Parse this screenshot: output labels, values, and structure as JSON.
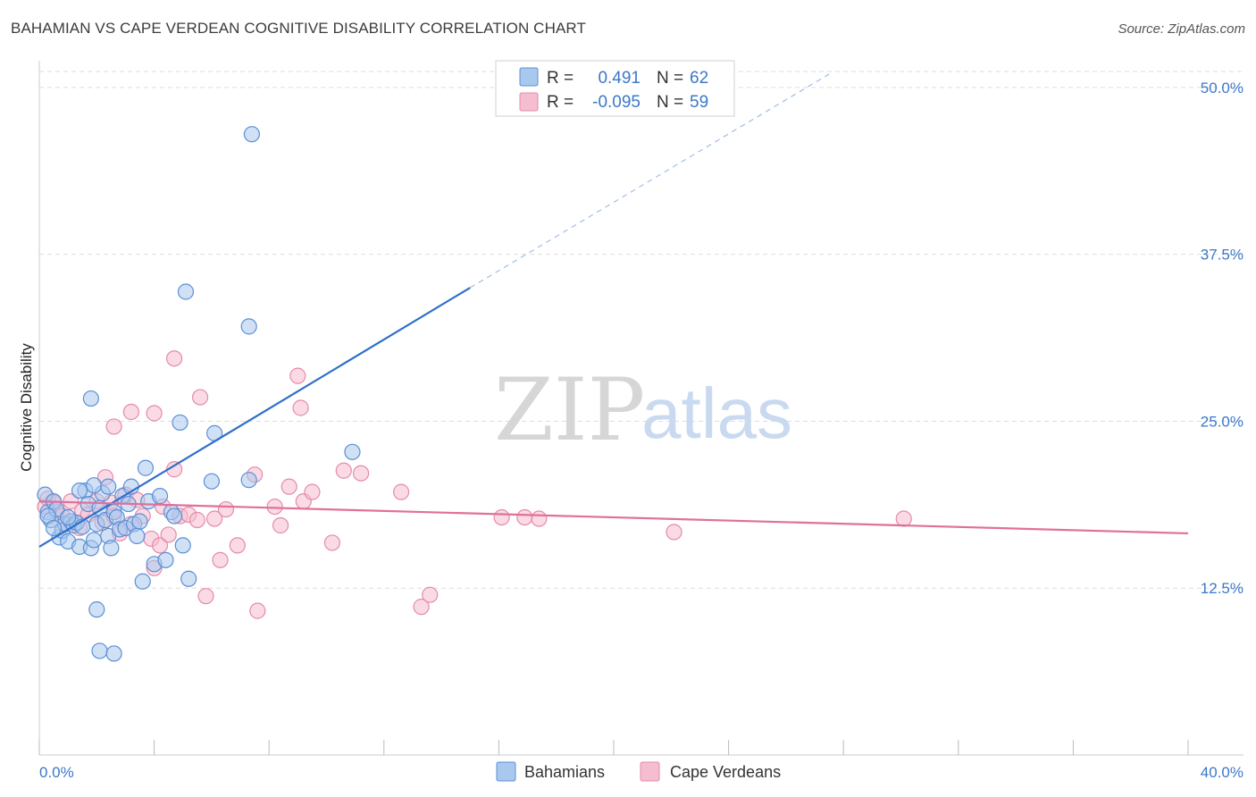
{
  "chart_title": "BAHAMIAN VS CAPE VERDEAN COGNITIVE DISABILITY CORRELATION CHART",
  "source": "Source: ZipAtlas.com",
  "watermark": {
    "zip": "ZIP",
    "atlas": "atlas"
  },
  "legend": {
    "rows": [
      {
        "r_label": "R =",
        "r_value": "0.491",
        "n_label": "N =",
        "n_value": "62"
      },
      {
        "r_label": "R =",
        "r_value": "-0.095",
        "n_label": "N =",
        "n_value": "59"
      }
    ]
  },
  "colors": {
    "blue_fill": "#a9c8ee",
    "blue_stroke": "#5b8fd4",
    "blue_line": "#2f6fcc",
    "pink_fill": "#f5bdd0",
    "pink_stroke": "#e58aa8",
    "pink_line": "#e0709a",
    "tick_text": "#3b78c9",
    "grid": "#dddddd"
  },
  "chart_data": {
    "type": "scatter",
    "xlabel": "",
    "ylabel": "Cognitive Disability",
    "xlim": [
      0,
      40
    ],
    "ylim": [
      0,
      52
    ],
    "x_tick_labels": [
      "0.0%",
      "40.0%"
    ],
    "y_ticks": [
      12.5,
      25.0,
      37.5,
      50.0
    ],
    "y_tick_labels": [
      "12.5%",
      "25.0%",
      "37.5%",
      "50.0%"
    ],
    "series": [
      {
        "name": "Bahamians",
        "r": 0.491,
        "n": 62,
        "trend": {
          "x0": 0,
          "y0": 15.6,
          "x1": 15.0,
          "y1": 35.0,
          "dash_to_x": 27.5,
          "dash_to_y": 51.0
        },
        "points": [
          [
            0.2,
            19.5
          ],
          [
            0.3,
            18.2
          ],
          [
            0.4,
            17.6
          ],
          [
            0.5,
            19.0
          ],
          [
            0.6,
            18.4
          ],
          [
            0.3,
            17.9
          ],
          [
            0.7,
            16.3
          ],
          [
            0.8,
            16.8
          ],
          [
            0.9,
            17.3
          ],
          [
            1.0,
            16.0
          ],
          [
            1.1,
            17.5
          ],
          [
            1.2,
            17.2
          ],
          [
            1.3,
            17.4
          ],
          [
            1.4,
            15.6
          ],
          [
            1.5,
            17.1
          ],
          [
            1.6,
            19.8
          ],
          [
            1.7,
            18.8
          ],
          [
            1.8,
            15.5
          ],
          [
            1.9,
            16.1
          ],
          [
            2.0,
            17.3
          ],
          [
            2.1,
            18.5
          ],
          [
            2.2,
            19.6
          ],
          [
            2.3,
            17.6
          ],
          [
            2.4,
            16.4
          ],
          [
            2.5,
            15.5
          ],
          [
            2.6,
            18.2
          ],
          [
            2.7,
            17.8
          ],
          [
            2.8,
            16.9
          ],
          [
            2.9,
            19.4
          ],
          [
            3.0,
            17.0
          ],
          [
            3.1,
            18.8
          ],
          [
            3.2,
            20.1
          ],
          [
            3.3,
            17.3
          ],
          [
            3.4,
            16.4
          ],
          [
            3.5,
            17.5
          ],
          [
            3.6,
            13.0
          ],
          [
            3.7,
            21.5
          ],
          [
            3.8,
            19.0
          ],
          [
            4.0,
            14.3
          ],
          [
            4.2,
            19.4
          ],
          [
            4.4,
            14.6
          ],
          [
            4.6,
            18.2
          ],
          [
            4.7,
            17.9
          ],
          [
            4.9,
            24.9
          ],
          [
            5.0,
            15.7
          ],
          [
            5.2,
            13.2
          ],
          [
            2.0,
            10.9
          ],
          [
            2.1,
            7.8
          ],
          [
            2.6,
            7.6
          ],
          [
            1.9,
            20.2
          ],
          [
            1.8,
            26.7
          ],
          [
            5.1,
            34.7
          ],
          [
            7.4,
            46.5
          ],
          [
            7.3,
            32.1
          ],
          [
            6.1,
            24.1
          ],
          [
            6.0,
            20.5
          ],
          [
            7.3,
            20.6
          ],
          [
            10.9,
            22.7
          ],
          [
            2.4,
            20.1
          ],
          [
            1.0,
            17.8
          ],
          [
            1.4,
            19.8
          ],
          [
            0.5,
            17.0
          ]
        ]
      },
      {
        "name": "Cape Verdeans",
        "r": -0.095,
        "n": 59,
        "trend": {
          "x0": 0,
          "y0": 19.0,
          "x1": 40,
          "y1": 16.6
        },
        "points": [
          [
            0.2,
            18.6
          ],
          [
            0.3,
            19.2
          ],
          [
            0.5,
            18.9
          ],
          [
            0.6,
            18.2
          ],
          [
            0.8,
            17.9
          ],
          [
            1.0,
            17.3
          ],
          [
            1.1,
            19.0
          ],
          [
            1.4,
            17.0
          ],
          [
            1.5,
            18.3
          ],
          [
            1.7,
            18.0
          ],
          [
            2.0,
            19.0
          ],
          [
            2.2,
            17.4
          ],
          [
            2.3,
            20.8
          ],
          [
            2.5,
            18.9
          ],
          [
            2.6,
            17.9
          ],
          [
            2.8,
            16.6
          ],
          [
            3.0,
            19.5
          ],
          [
            3.2,
            17.3
          ],
          [
            3.4,
            19.1
          ],
          [
            3.6,
            17.9
          ],
          [
            3.9,
            16.2
          ],
          [
            4.0,
            14.0
          ],
          [
            4.2,
            15.7
          ],
          [
            4.3,
            18.6
          ],
          [
            4.5,
            16.5
          ],
          [
            4.7,
            21.4
          ],
          [
            4.9,
            17.9
          ],
          [
            5.2,
            18.0
          ],
          [
            5.5,
            17.6
          ],
          [
            5.8,
            11.9
          ],
          [
            6.1,
            17.7
          ],
          [
            6.3,
            14.6
          ],
          [
            6.5,
            18.4
          ],
          [
            6.9,
            15.7
          ],
          [
            7.5,
            21.0
          ],
          [
            7.6,
            10.8
          ],
          [
            8.2,
            18.6
          ],
          [
            8.4,
            17.2
          ],
          [
            8.7,
            20.1
          ],
          [
            9.2,
            19.0
          ],
          [
            9.5,
            19.7
          ],
          [
            10.2,
            15.9
          ],
          [
            10.6,
            21.3
          ],
          [
            11.2,
            21.1
          ],
          [
            12.6,
            19.7
          ],
          [
            13.3,
            11.1
          ],
          [
            13.6,
            12.0
          ],
          [
            16.1,
            17.8
          ],
          [
            16.9,
            17.8
          ],
          [
            17.4,
            17.7
          ],
          [
            22.1,
            16.7
          ],
          [
            30.1,
            17.7
          ],
          [
            2.6,
            24.6
          ],
          [
            3.2,
            25.7
          ],
          [
            4.0,
            25.6
          ],
          [
            5.6,
            26.8
          ],
          [
            4.7,
            29.7
          ],
          [
            9.0,
            28.4
          ],
          [
            9.1,
            26.0
          ]
        ]
      }
    ]
  },
  "bottom_legend": [
    "Bahamians",
    "Cape Verdeans"
  ]
}
